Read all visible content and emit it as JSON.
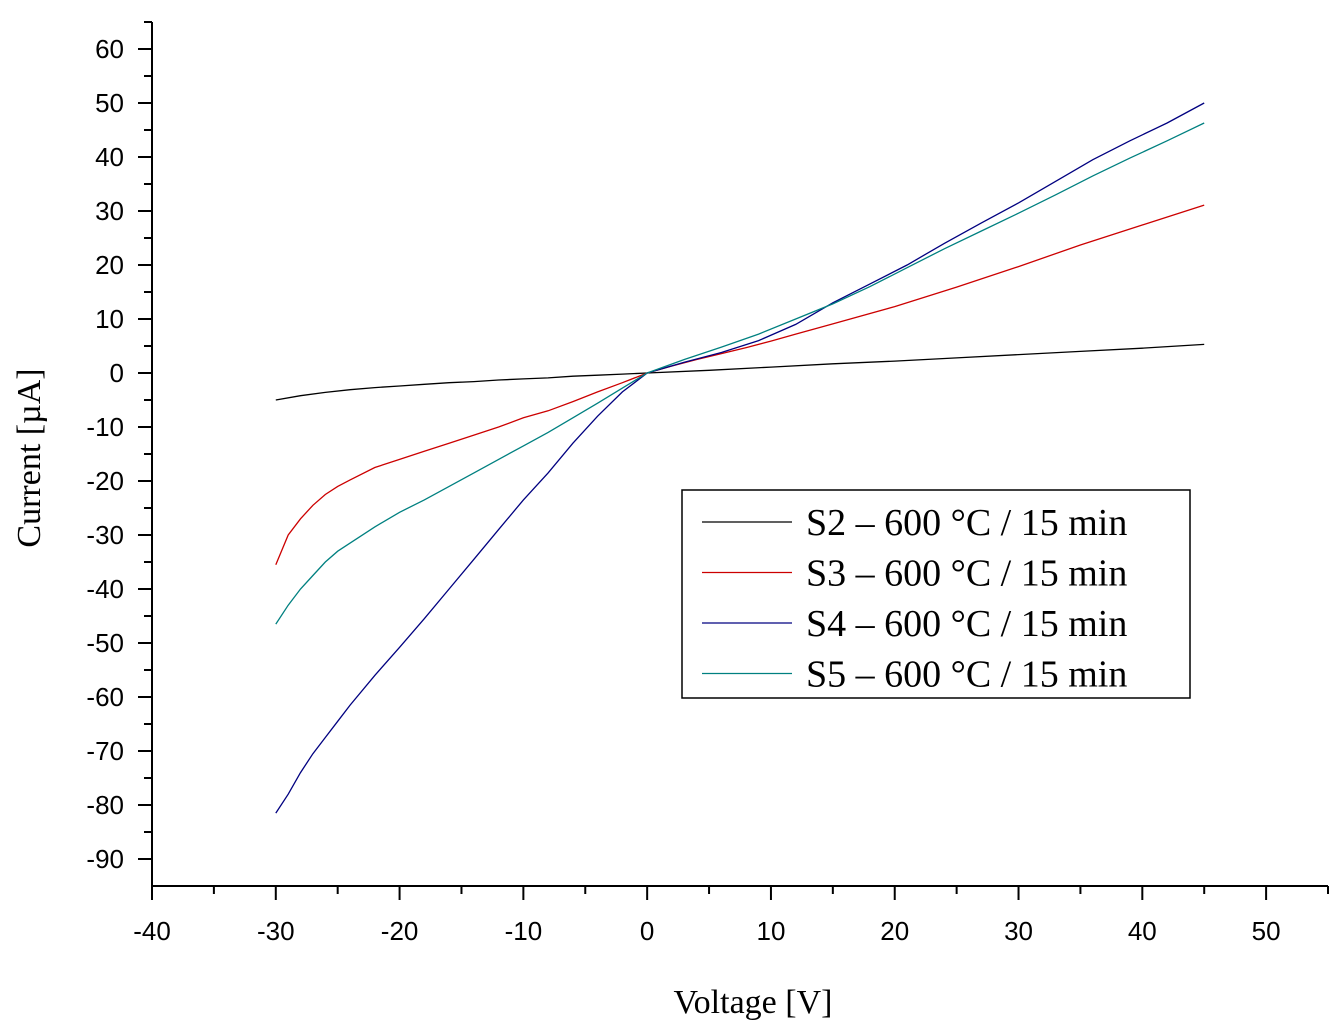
{
  "chart_data": {
    "type": "line",
    "xlabel": "Voltage [V]",
    "ylabel": "Current [µA]",
    "xlim": [
      -40,
      55
    ],
    "ylim": [
      -95,
      65
    ],
    "xticks": [
      -40,
      -30,
      -20,
      -10,
      0,
      10,
      20,
      30,
      40,
      50
    ],
    "yticks": [
      60,
      50,
      40,
      30,
      20,
      10,
      0,
      -10,
      -20,
      -30,
      -40,
      -50,
      -60,
      -70,
      -80,
      -90
    ],
    "grid": false,
    "legend_position": "center-right",
    "series": [
      {
        "name": "S2 – 600 °C / 15 min",
        "color": "#000000",
        "x": [
          -30,
          -28,
          -26,
          -24,
          -22,
          -20,
          -18,
          -16,
          -14,
          -12,
          -10,
          -8,
          -6,
          -4,
          -2,
          0,
          5,
          10,
          15,
          20,
          25,
          30,
          35,
          40,
          45
        ],
        "y": [
          -5,
          -4.2,
          -3.6,
          -3.1,
          -2.7,
          -2.4,
          -2.1,
          -1.8,
          -1.6,
          -1.3,
          -1.1,
          -0.9,
          -0.6,
          -0.4,
          -0.2,
          0,
          0.5,
          1.1,
          1.7,
          2.2,
          2.8,
          3.4,
          4.0,
          4.6,
          5.3
        ]
      },
      {
        "name": "S3 – 600 °C / 15 min",
        "color": "#cc0000",
        "x": [
          -30,
          -29,
          -28,
          -27,
          -26,
          -25,
          -24,
          -22,
          -20,
          -18,
          -16,
          -14,
          -12,
          -10,
          -8,
          -6,
          -4,
          -2,
          0,
          2,
          4,
          6,
          8,
          10,
          12,
          15,
          20,
          25,
          30,
          35,
          40,
          45
        ],
        "y": [
          -35.5,
          -30,
          -27,
          -24.5,
          -22.5,
          -21,
          -19.8,
          -17.5,
          -16,
          -14.5,
          -13,
          -11.5,
          -10,
          -8.3,
          -7,
          -5.3,
          -3.5,
          -1.8,
          0,
          1.3,
          2.5,
          3.6,
          4.7,
          5.9,
          7.2,
          9.1,
          12.3,
          15.9,
          19.7,
          23.7,
          27.4,
          31.1
        ]
      },
      {
        "name": "S4 – 600 °C / 15 min",
        "color": "#000080",
        "x": [
          -30,
          -29,
          -28,
          -27,
          -26,
          -25,
          -24,
          -22,
          -20,
          -18,
          -16,
          -14,
          -12,
          -10,
          -8,
          -6,
          -4,
          -2,
          0,
          3,
          6,
          9,
          12,
          15,
          18,
          21,
          24,
          27,
          30,
          33,
          36,
          39,
          42,
          45
        ],
        "y": [
          -81.5,
          -78,
          -74,
          -70.5,
          -67.5,
          -64.5,
          -61.5,
          -56,
          -50.8,
          -45.5,
          -40,
          -34.5,
          -29,
          -23.5,
          -18.5,
          -13,
          -8,
          -3.5,
          0,
          2,
          3.8,
          6,
          9,
          13,
          16.5,
          20,
          24,
          27.8,
          31.5,
          35.5,
          39.5,
          43,
          46.3,
          50
        ]
      },
      {
        "name": "S5 – 600 °C / 15 min",
        "color": "#008080",
        "x": [
          -30,
          -29,
          -28,
          -27,
          -26,
          -25,
          -24,
          -22,
          -20,
          -18,
          -16,
          -14,
          -12,
          -10,
          -8,
          -6,
          -4,
          -2,
          0,
          3,
          6,
          9,
          12,
          15,
          18,
          21,
          24,
          27,
          30,
          33,
          36,
          39,
          42,
          45
        ],
        "y": [
          -46.5,
          -43,
          -40,
          -37.5,
          -35,
          -33,
          -31.5,
          -28.5,
          -25.8,
          -23.5,
          -21,
          -18.5,
          -16,
          -13.5,
          -11,
          -8.3,
          -5.6,
          -2.8,
          0,
          2.5,
          4.8,
          7.2,
          10,
          12.8,
          16,
          19.5,
          23,
          26.3,
          29.6,
          33,
          36.5,
          39.8,
          43,
          46.3
        ]
      }
    ]
  }
}
